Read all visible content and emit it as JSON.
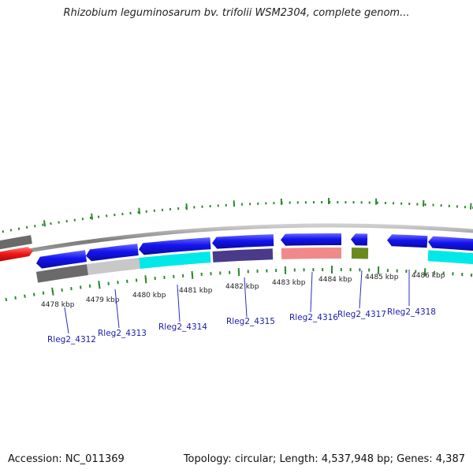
{
  "header": {
    "title": "Rhizobium leguminosarum bv. trifolii WSM2304, complete genom..."
  },
  "footer": {
    "accession_label": "Accession:",
    "accession": "NC_011369",
    "topology_label": "Topology:",
    "topology": "circular",
    "length_label": "Length:",
    "length": "4,537,948 bp",
    "genes_label": "Genes:",
    "genes": "4,387"
  },
  "colors": {
    "backbone": "#8a8a8a",
    "tick": "#2d8a2d",
    "gene_label": "#1a1ab0",
    "cds_forward": "#1515ee",
    "cds_reverse": "#ee1515"
  },
  "scale_labels": [
    "4478 kbp",
    "4479 kbp",
    "4480 kbp",
    "4481 kbp",
    "4482 kbp",
    "4483 kbp",
    "4484 kbp",
    "4485 kbp",
    "4486 kbp"
  ],
  "gene_labels": [
    "Rleg2_4312",
    "Rleg2_4313",
    "Rleg2_4314",
    "Rleg2_4315",
    "Rleg2_4316",
    "Rleg2_4317",
    "Rleg2_4318"
  ],
  "feature_colors": {
    "cog_row": [
      "#6a6a6a",
      "#c8c8c8",
      "#00e8e8",
      "#4a3a8a",
      "#f08a8a",
      "#6a8a20",
      "#00e8e8"
    ]
  }
}
